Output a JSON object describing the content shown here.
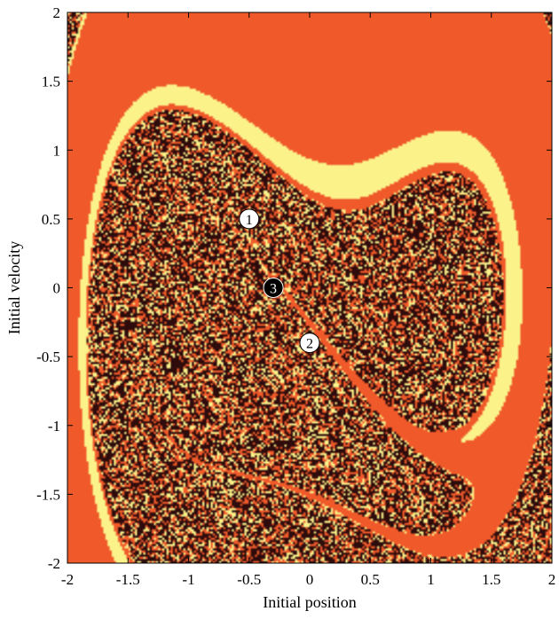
{
  "chart_data": {
    "type": "heatmap",
    "title": "",
    "xlabel": "Initial position",
    "ylabel": "Initial velocity",
    "xlim": [
      -2,
      2
    ],
    "ylim": [
      -2,
      2
    ],
    "xticks": [
      -2,
      -1.5,
      -1,
      -0.5,
      0,
      0.5,
      1,
      1.5,
      2
    ],
    "xtick_labels": [
      "-2",
      "-1.5",
      "-1",
      "-0.5",
      "0",
      "0.5",
      "1",
      "1.5",
      "2"
    ],
    "yticks": [
      -2,
      -1.5,
      -1,
      -0.5,
      0,
      0.5,
      1,
      1.5,
      2
    ],
    "ytick_labels": [
      "-2",
      "-1.5",
      "-1",
      "-0.5",
      "0",
      "0.5",
      "1",
      "1.5",
      "2"
    ],
    "grid": false,
    "basins": [
      {
        "id": 1,
        "label": "①",
        "color": "#FBF28A",
        "attractor": [
          -0.5,
          0.5
        ]
      },
      {
        "id": 2,
        "label": "②",
        "color": "#F05A2A",
        "attractor": [
          0.0,
          -0.4
        ]
      },
      {
        "id": 3,
        "label": "③",
        "color": "#2E0C0C",
        "attractor": [
          -0.3,
          0.0
        ]
      }
    ]
  }
}
